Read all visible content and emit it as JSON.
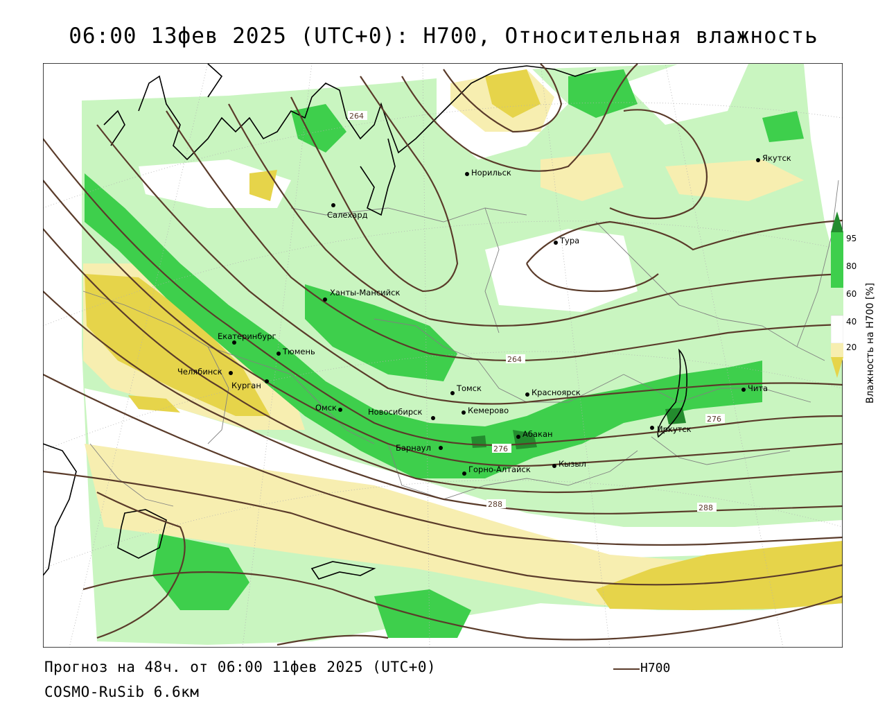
{
  "header": {
    "title": "06:00 13фев 2025 (UTC+0): H700, Относительная влажность"
  },
  "footer": {
    "forecast": "Прогноз на 48ч. от 06:00 11фев 2025 (UTC+0)",
    "model": "COSMO-RuSib 6.6км",
    "legend_label": "H700"
  },
  "colorbar": {
    "title": "Влажность на H700 [%]",
    "ticks": [
      "95",
      "80",
      "60",
      "40",
      "20"
    ],
    "colors": [
      "#238b2e",
      "#3ecf4c",
      "#c9f5c0",
      "#ffffff",
      "#f7eeb0",
      "#e6d44a"
    ]
  },
  "colors": {
    "isohypse": "#5a3b2a",
    "coast": "#000000",
    "land_bg": "#ffffff"
  },
  "cities": [
    {
      "name": "Норильск"
    },
    {
      "name": "Якутск"
    },
    {
      "name": "Салехард"
    },
    {
      "name": "Тура"
    },
    {
      "name": "Ханты-Мансийск"
    },
    {
      "name": "Екатеринбург"
    },
    {
      "name": "Тюмень"
    },
    {
      "name": "Челябинск"
    },
    {
      "name": "Курган"
    },
    {
      "name": "Омск"
    },
    {
      "name": "Новосибирск"
    },
    {
      "name": "Томск"
    },
    {
      "name": "Кемерово"
    },
    {
      "name": "Красноярск"
    },
    {
      "name": "Абакан"
    },
    {
      "name": "Барнаул"
    },
    {
      "name": "Горно-Алтайск"
    },
    {
      "name": "Кызыл"
    },
    {
      "name": "Иркутск"
    },
    {
      "name": "Чита"
    }
  ],
  "isohypse_labels": [
    "264",
    "264",
    "276",
    "276",
    "288",
    "288"
  ]
}
